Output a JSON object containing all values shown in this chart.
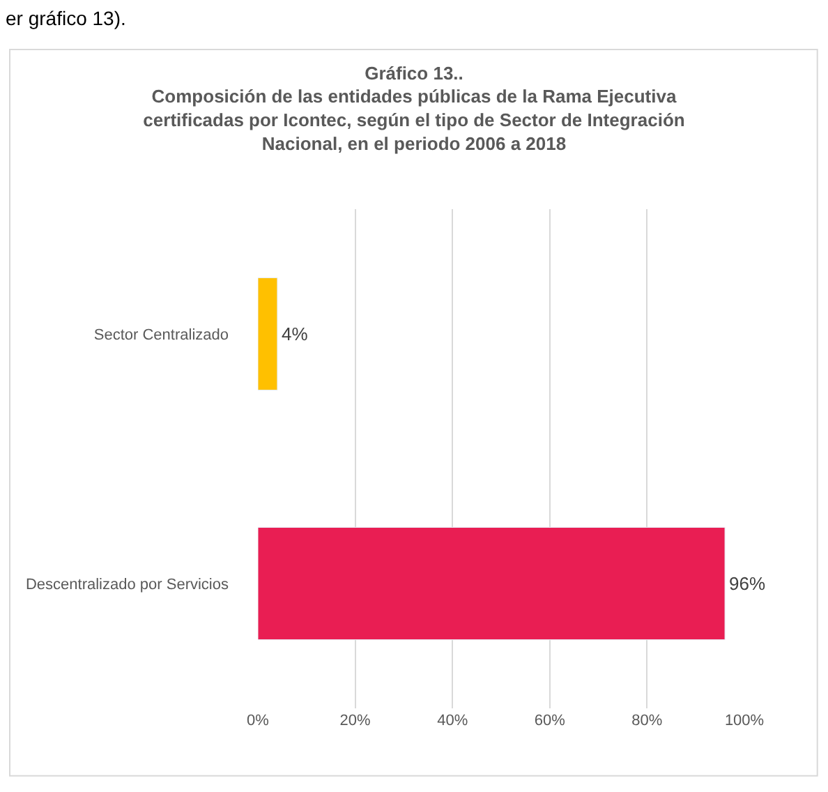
{
  "chart_data": {
    "type": "bar",
    "orientation": "horizontal",
    "title": "Gráfico 13..\nComposición de las entidades públicas de la Rama Ejecutiva\ncertificadas por Icontec, según el tipo de Sector de Integración\nNacional, en el periodo 2006 a 2018",
    "categories": [
      "Sector Centralizado",
      "Descentralizado por Servicios"
    ],
    "values": [
      4,
      96
    ],
    "colors": [
      "#ffc000",
      "#e91e53"
    ],
    "value_labels": [
      "4%",
      "96%"
    ],
    "xlim": [
      0,
      100
    ],
    "xticks": [
      {
        "value": 0,
        "label": "0%"
      },
      {
        "value": 20,
        "label": "20%"
      },
      {
        "value": 40,
        "label": "40%"
      },
      {
        "value": 60,
        "label": "60%"
      },
      {
        "value": 80,
        "label": "80%"
      },
      {
        "value": 100,
        "label": "100%"
      }
    ],
    "grid": "x",
    "legend": false,
    "annotations": [
      "er gráfico 13)."
    ]
  }
}
